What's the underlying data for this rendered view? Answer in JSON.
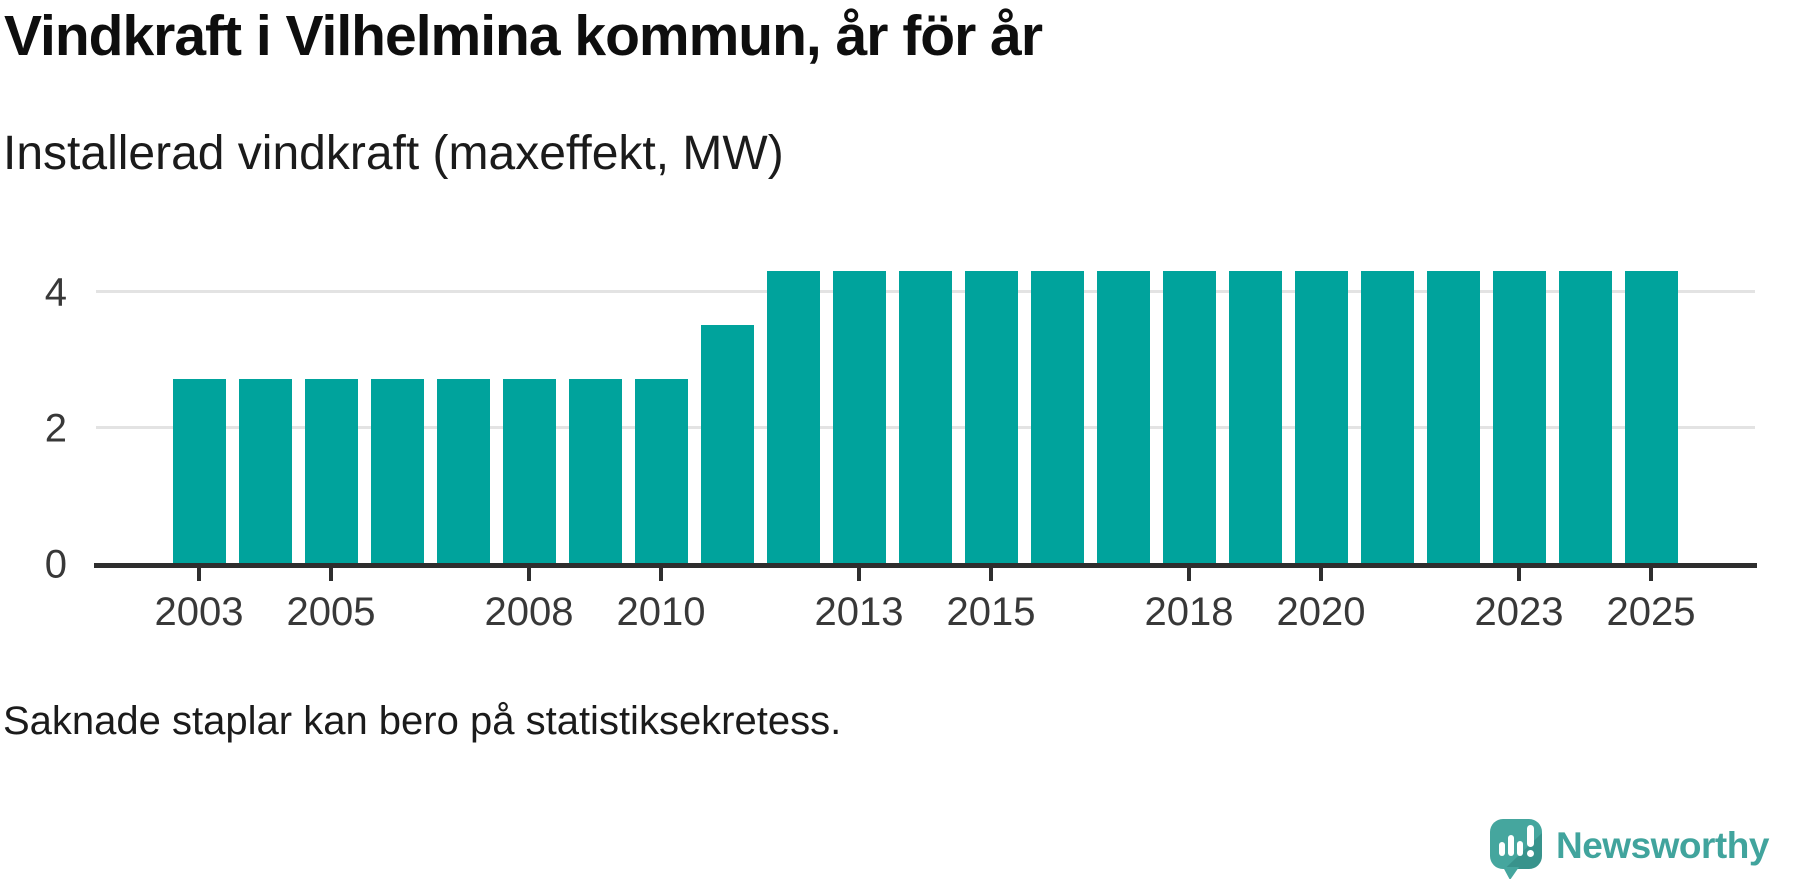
{
  "title": "Vindkraft i Vilhelmina kommun, år för år",
  "subtitle": "Installerad vindkraft (maxeffekt, MW)",
  "footnote": "Saknade staplar kan bero på statistiksekretess.",
  "branding": {
    "name": "Newsworthy",
    "icon": "newsworthy-speech-bubble-barchart-icon"
  },
  "colors": {
    "bar": "#00a39c",
    "grid": "#e3e3e3",
    "axis": "#2e2e2e",
    "axis_label": "#383838",
    "text": "#1b1b1b",
    "logo": "#45a69e"
  },
  "chart_data": {
    "type": "bar",
    "title": "Vindkraft i Vilhelmina kommun, år för år",
    "subtitle": "Installerad vindkraft (maxeffekt, MW)",
    "xlabel": "",
    "ylabel": "Installerad vindkraft (maxeffekt, MW)",
    "categories": [
      2003,
      2004,
      2005,
      2006,
      2007,
      2008,
      2009,
      2010,
      2011,
      2012,
      2013,
      2014,
      2015,
      2016,
      2017,
      2018,
      2019,
      2020,
      2021,
      2022,
      2023,
      2024,
      2025
    ],
    "values": [
      2.7,
      2.7,
      2.7,
      2.7,
      2.7,
      2.7,
      2.7,
      2.7,
      3.5,
      4.3,
      4.3,
      4.3,
      4.3,
      4.3,
      4.3,
      4.3,
      4.3,
      4.3,
      4.3,
      4.3,
      4.3,
      4.3,
      4.3
    ],
    "series": [
      {
        "name": "Installerad vindkraft (MW)",
        "values": [
          2.7,
          2.7,
          2.7,
          2.7,
          2.7,
          2.7,
          2.7,
          2.7,
          3.5,
          4.3,
          4.3,
          4.3,
          4.3,
          4.3,
          4.3,
          4.3,
          4.3,
          4.3,
          4.3,
          4.3,
          4.3,
          4.3,
          4.3
        ]
      }
    ],
    "ylim": [
      0,
      4.6
    ],
    "yticks": [
      0,
      2,
      4
    ],
    "xtick_labels": [
      "2003",
      "2005",
      "2008",
      "2010",
      "2013",
      "2015",
      "2018",
      "2020",
      "2023",
      "2025"
    ],
    "grid": "horizontal-only",
    "legend": "none",
    "bar_color": "#00a39c"
  }
}
